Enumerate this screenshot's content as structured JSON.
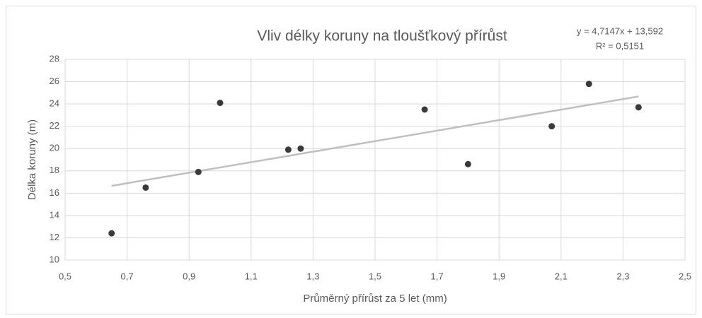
{
  "chart_data": {
    "type": "scatter",
    "title": "Vliv délky koruny na tloušťkový přírůst",
    "x_label": "Průměrný přírůst za 5 let (mm)",
    "y_label": "Délka koruny (m)",
    "series": [
      {
        "color": "#3a3a3a",
        "x": [
          0.65,
          0.76,
          0.93,
          1.0,
          1.22,
          1.26,
          1.66,
          1.8,
          2.07,
          2.19,
          2.35
        ],
        "values": [
          12.4,
          16.5,
          17.9,
          24.1,
          19.9,
          20.0,
          23.5,
          18.6,
          22.0,
          25.8,
          23.7
        ]
      }
    ],
    "trendline": {
      "equation": "y = 4,7147x + 13,592",
      "r2_label": "R² = 0,5151",
      "slope": 4.7147,
      "intercept": 13.592,
      "color": "#bfbfbf"
    },
    "xlim": [
      0.5,
      2.5
    ],
    "xticks": [
      {
        "value": 0.5,
        "label": "0,5"
      },
      {
        "value": 0.7,
        "label": "0,7"
      },
      {
        "value": 0.9,
        "label": "0,9"
      },
      {
        "value": 1.1,
        "label": "1,1"
      },
      {
        "value": 1.3,
        "label": "1,3"
      },
      {
        "value": 1.5,
        "label": "1,5"
      },
      {
        "value": 1.7,
        "label": "1,7"
      },
      {
        "value": 1.9,
        "label": "1,9"
      },
      {
        "value": 2.1,
        "label": "2,1"
      },
      {
        "value": 2.3,
        "label": "2,3"
      },
      {
        "value": 2.5,
        "label": "2,5"
      }
    ],
    "ylim": [
      10,
      28
    ],
    "yticks": [
      10,
      12,
      14,
      16,
      18,
      20,
      22,
      24,
      26,
      28
    ],
    "grid": true
  }
}
